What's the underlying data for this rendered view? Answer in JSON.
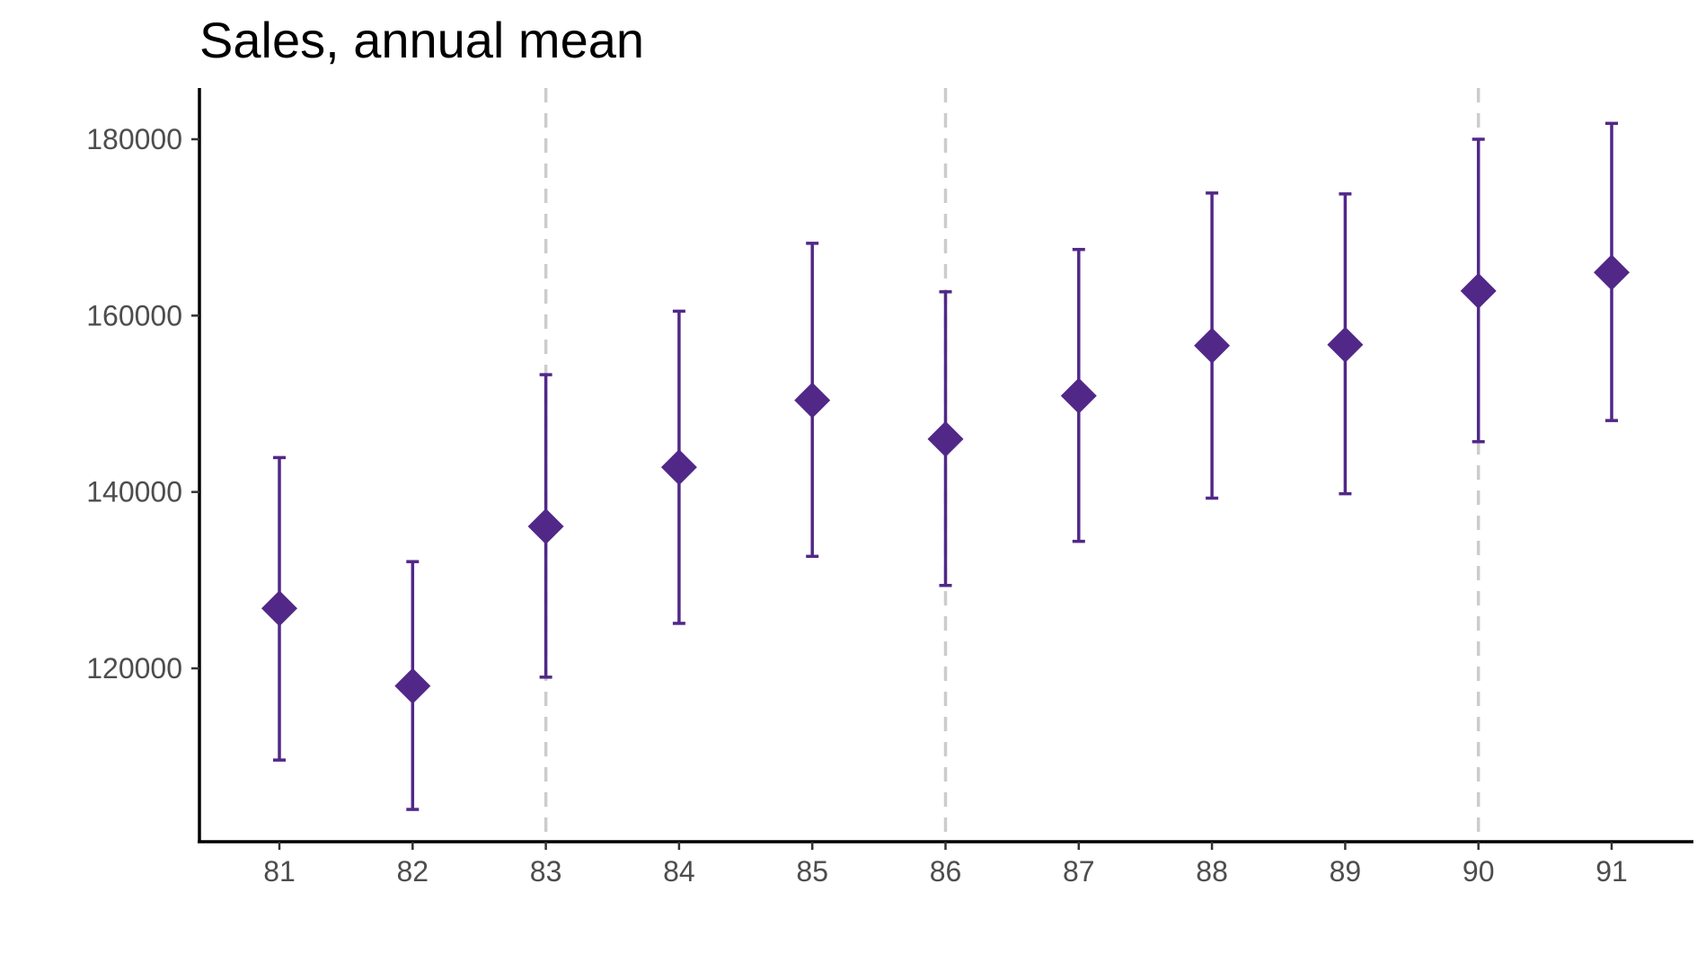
{
  "chart_data": {
    "type": "scatter",
    "title": "Sales, annual mean",
    "xlabel": "",
    "ylabel": "",
    "categories": [
      "81",
      "82",
      "83",
      "84",
      "85",
      "86",
      "87",
      "88",
      "89",
      "90",
      "91"
    ],
    "series": [
      {
        "values": [
          126800,
          118000,
          136100,
          142800,
          150400,
          146000,
          150900,
          156600,
          156700,
          162800,
          164900
        ],
        "lower": [
          109600,
          104000,
          119000,
          125100,
          132700,
          129400,
          134400,
          139300,
          139800,
          145700,
          148100
        ],
        "upper": [
          143900,
          132100,
          153300,
          160500,
          168200,
          162700,
          167500,
          173900,
          173800,
          180000,
          181800
        ],
        "marker": "diamond",
        "color": "#512888"
      }
    ],
    "yticks": [
      120000,
      140000,
      160000,
      180000
    ],
    "ytick_labels": [
      "120000",
      "140000",
      "160000",
      "180000"
    ],
    "ylim": [
      100200,
      185500
    ],
    "vertical_reference_lines": [
      "83",
      "86",
      "90"
    ],
    "reference_line_style": "dashed",
    "reference_line_color": "#cccccc",
    "grid": false,
    "legend": "none"
  }
}
